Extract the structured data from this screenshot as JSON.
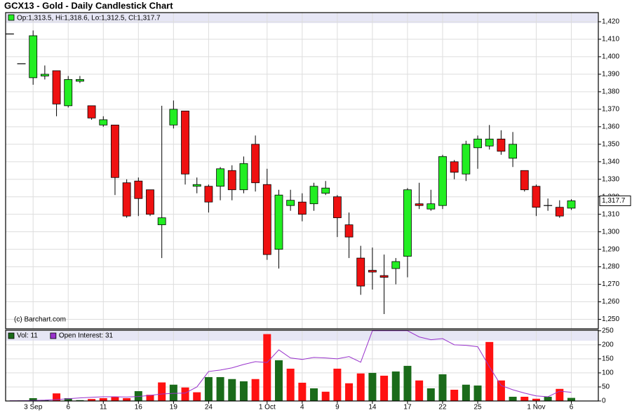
{
  "chart_data": [
    {
      "type": "candlestick",
      "title": "GCX13 - Gold - Daily Candlestick Chart",
      "legend_text": "Op:1,313.5, Hi:1,318.6, Lo:1,312.5, Cl:1,317.7",
      "watermark": "(c) Barchart.com",
      "last_price_label": "1,317.7",
      "categories": [
        null,
        null,
        "3 Sep",
        null,
        null,
        "6",
        null,
        null,
        "11",
        null,
        null,
        "16",
        null,
        null,
        "19",
        null,
        null,
        "24",
        null,
        null,
        null,
        null,
        "1 Oct",
        null,
        null,
        "4",
        null,
        null,
        "9",
        null,
        null,
        "14",
        null,
        null,
        "17",
        null,
        null,
        "22",
        null,
        null,
        "25",
        null,
        null,
        null,
        null,
        "1 Nov",
        null,
        null,
        "6"
      ],
      "open": [
        1413,
        1396,
        1388,
        1389,
        1392,
        1372,
        1386,
        1372,
        1361,
        1361,
        1328,
        1329,
        1324,
        1304,
        1361,
        1369,
        1326,
        1326,
        1326,
        1335,
        1324,
        1350,
        1327,
        1290,
        1315,
        1317,
        1316,
        1322,
        1320,
        1304,
        1285,
        1278,
        1275,
        1279,
        1286,
        1316,
        1313,
        1315,
        1340,
        1333,
        1348,
        1349,
        1353,
        1342,
        1335,
        1326,
        1315,
        1314,
        1313.5
      ],
      "high": [
        1413,
        1396,
        1415,
        1395,
        1392,
        1389,
        1389,
        1372,
        1366,
        1361,
        1330,
        1331,
        1324,
        1372,
        1375,
        1369,
        1331,
        1327,
        1337,
        1338,
        1343,
        1355,
        1336,
        1324,
        1324,
        1322,
        1328,
        1329,
        1321,
        1311,
        1292,
        1291,
        1287,
        1285,
        1325,
        1328,
        1324,
        1344,
        1341,
        1352,
        1355,
        1361,
        1358,
        1357,
        1335,
        1327,
        1319,
        1318,
        1318.6
      ],
      "low": [
        1413,
        1396,
        1384,
        1387,
        1366,
        1371,
        1385,
        1364,
        1360,
        1321,
        1308,
        1309,
        1309,
        1285,
        1359,
        1327,
        1322,
        1311,
        1318,
        1318,
        1322,
        1323,
        1284,
        1279,
        1312,
        1306,
        1312,
        1321,
        1297,
        1285,
        1264,
        1267,
        1253,
        1270,
        1274,
        1313,
        1312,
        1313,
        1330,
        1329,
        1336,
        1347,
        1344,
        1337,
        1323,
        1309,
        1312,
        1308,
        1312.5
      ],
      "close": [
        1413,
        1396,
        1412,
        1390,
        1373,
        1387,
        1387,
        1365,
        1364,
        1331,
        1309,
        1319,
        1310,
        1308,
        1370,
        1333,
        1327,
        1317,
        1336,
        1324,
        1339,
        1328,
        1287,
        1321,
        1318,
        1310,
        1326,
        1325,
        1308,
        1297,
        1269,
        1277,
        1274,
        1283,
        1324,
        1315,
        1316,
        1343,
        1334,
        1350,
        1353,
        1353,
        1346,
        1350,
        1324,
        1314,
        1315,
        1309,
        1317.7
      ],
      "up_color": "#22ee22",
      "down_color": "#ee1111",
      "ylim": [
        1244.6,
        1425.2
      ],
      "yticks": [
        {
          "value": 1250,
          "label": "1,250"
        },
        {
          "value": 1260,
          "label": "1,260"
        },
        {
          "value": 1270,
          "label": "1,270"
        },
        {
          "value": 1280,
          "label": "1,280"
        },
        {
          "value": 1290,
          "label": "1,290"
        },
        {
          "value": 1300,
          "label": "1,300"
        },
        {
          "value": 1310,
          "label": "1,310"
        },
        {
          "value": 1320,
          "label": "1,320"
        },
        {
          "value": 1330,
          "label": "1,330"
        },
        {
          "value": 1340,
          "label": "1,340"
        },
        {
          "value": 1350,
          "label": "1,350"
        },
        {
          "value": 1360,
          "label": "1,360"
        },
        {
          "value": 1370,
          "label": "1,370"
        },
        {
          "value": 1380,
          "label": "1,380"
        },
        {
          "value": 1390,
          "label": "1,390"
        },
        {
          "value": 1400,
          "label": "1,400"
        },
        {
          "value": 1410,
          "label": "1,410"
        },
        {
          "value": 1420,
          "label": "1,420"
        }
      ],
      "grid": true
    },
    {
      "type": "volume",
      "series": [
        {
          "name": "Vol",
          "legend_label": "Vol: 11",
          "color": "#1a6b1a",
          "values": [
            1,
            2,
            10,
            3,
            27,
            10,
            3,
            7,
            10,
            14,
            10,
            35,
            22,
            66,
            58,
            48,
            31,
            85,
            85,
            78,
            70,
            78,
            238,
            145,
            115,
            65,
            45,
            33,
            115,
            63,
            98,
            100,
            90,
            105,
            125,
            73,
            45,
            95,
            40,
            58,
            55,
            210,
            73,
            15,
            15,
            8,
            15,
            43,
            11
          ],
          "colors": [
            "#1a6b1a",
            "#1a6b1a",
            "#1a6b1a",
            "#1a6b1a",
            "#ff1111",
            "#1a6b1a",
            "#1a6b1a",
            "#ff1111",
            "#ff1111",
            "#ff1111",
            "#ff1111",
            "#1a6b1a",
            "#ff1111",
            "#ff1111",
            "#1a6b1a",
            "#ff1111",
            "#ff1111",
            "#1a6b1a",
            "#1a6b1a",
            "#1a6b1a",
            "#1a6b1a",
            "#ff1111",
            "#ff1111",
            "#1a6b1a",
            "#ff1111",
            "#ff1111",
            "#1a6b1a",
            "#ff1111",
            "#ff1111",
            "#ff1111",
            "#ff1111",
            "#1a6b1a",
            "#ff1111",
            "#1a6b1a",
            "#1a6b1a",
            "#ff1111",
            "#1a6b1a",
            "#1a6b1a",
            "#ff1111",
            "#1a6b1a",
            "#1a6b1a",
            "#ff1111",
            "#ff1111",
            "#1a6b1a",
            "#ff1111",
            "#ff1111",
            "#1a6b1a",
            "#ff1111",
            "#1a6b1a"
          ]
        },
        {
          "name": "Open Interest",
          "legend_label": "Open Interest: 31",
          "color": "#9933cc",
          "values": [
            1,
            1,
            2,
            3,
            5,
            8,
            11,
            13,
            15,
            15,
            14,
            16,
            20,
            25,
            27,
            28,
            50,
            105,
            110,
            118,
            130,
            140,
            137,
            182,
            153,
            148,
            155,
            153,
            150,
            158,
            138,
            250,
            250,
            250,
            250,
            228,
            218,
            222,
            200,
            198,
            193,
            122,
            55,
            40,
            28,
            18,
            15,
            35,
            31
          ]
        }
      ],
      "ylim": [
        0,
        252
      ],
      "yticks": [
        0,
        50,
        100,
        150,
        200,
        250
      ],
      "grid": true
    }
  ]
}
